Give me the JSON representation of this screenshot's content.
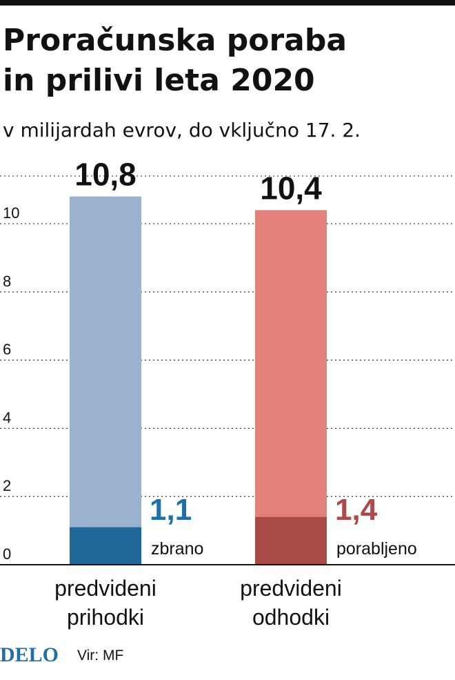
{
  "header": {
    "title_lines": [
      "Proračunska poraba",
      "in prilivi leta 2020"
    ],
    "subtitle": "v milijardah evrov, do vključno 17. 2."
  },
  "chart_data": {
    "type": "bar",
    "ylim": [
      0,
      11.5
    ],
    "y_ticks": [
      0,
      2,
      4,
      6,
      8,
      10
    ],
    "grid": true,
    "categories": [
      {
        "label_lines": [
          "predvideni",
          "prihodki"
        ],
        "total": 10.8,
        "total_label": "10,8",
        "part": 1.1,
        "part_label": "1,1",
        "part_caption": "zbrano",
        "color": "#9bb1d0",
        "part_color": "#1f6699",
        "part_label_color": "#1f6fa8"
      },
      {
        "label_lines": [
          "predvideni",
          "odhodki"
        ],
        "total": 10.4,
        "total_label": "10,4",
        "part": 1.4,
        "part_label": "1,4",
        "part_caption": "porabljeno",
        "color": "#e2807a",
        "part_color": "#a84a45",
        "part_label_color": "#b04848"
      }
    ]
  },
  "footer": {
    "logo": "DELO",
    "source": "Vir: MF"
  }
}
